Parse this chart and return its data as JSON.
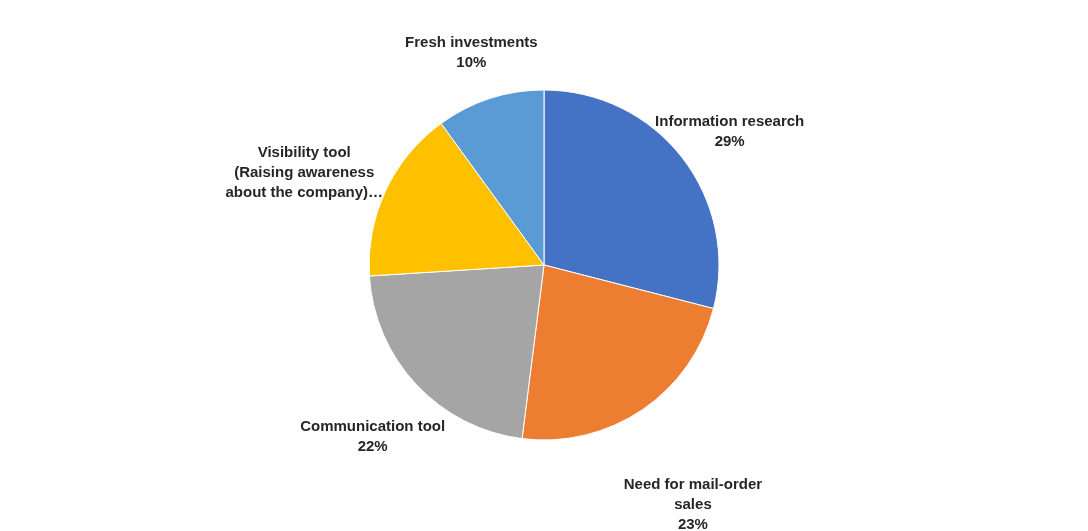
{
  "chart_data": {
    "type": "pie",
    "categories": [
      "Information research",
      "Need for mail-order sales",
      "Communication tool",
      "Visibility tool (Raising awareness about the company)…",
      "Fresh investments"
    ],
    "values": [
      29,
      23,
      22,
      16,
      10
    ],
    "value_labels": [
      "29%",
      "23%",
      "22%",
      null,
      "10%"
    ],
    "colors": [
      "#4472c4",
      "#ed7d31",
      "#a5a5a5",
      "#ffc000",
      "#5b9bd5"
    ]
  }
}
